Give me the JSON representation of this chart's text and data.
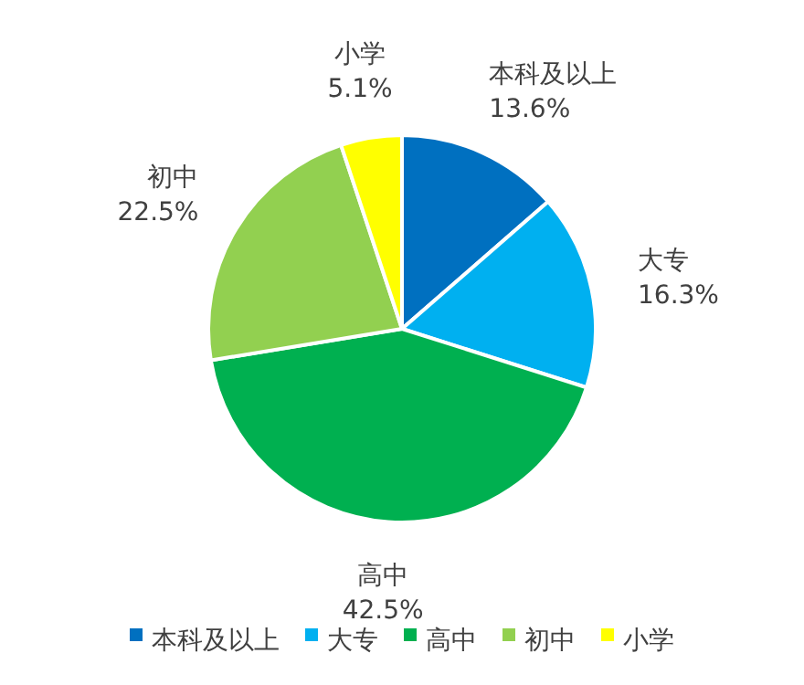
{
  "chart_data": {
    "type": "pie",
    "categories": [
      "本科及以上",
      "大专",
      "高中",
      "初中",
      "小学"
    ],
    "values": [
      13.6,
      16.3,
      42.5,
      22.5,
      5.1
    ],
    "colors": [
      "#0070c0",
      "#00b0f0",
      "#00b050",
      "#92d050",
      "#ffff00"
    ],
    "value_labels": [
      "13.6%",
      "16.3%",
      "42.5%",
      "22.5%",
      "5.1%"
    ],
    "legend": "bottom"
  }
}
